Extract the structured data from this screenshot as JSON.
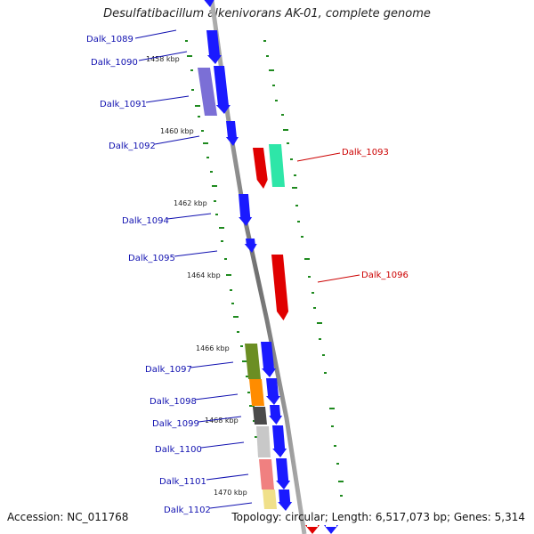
{
  "title": "Desulfatibacillum alkenivorans AK-01, complete genome",
  "footer": {
    "accession": "Accession: NC_011768",
    "summary": "Topology: circular; Length: 6,517,073 bp; Genes: 5,314"
  },
  "ticks": [
    "1458 kbp",
    "1460 kbp",
    "1462 kbp",
    "1464 kbp",
    "1466 kbp",
    "1468 kbp",
    "1470 kbp"
  ],
  "genes": [
    {
      "label": "Dalk_1089",
      "color": "#1a1aff",
      "strand": "forward"
    },
    {
      "label": "Dalk_1090",
      "color": "#1a1aff",
      "strand": "forward"
    },
    {
      "label": "Dalk_1091",
      "color": "#1a1aff",
      "strand": "forward"
    },
    {
      "label": "Dalk_1092",
      "color": "#1a1aff",
      "strand": "forward"
    },
    {
      "label": "Dalk_1093",
      "color": "#e00000",
      "strand": "reverse"
    },
    {
      "label": "Dalk_1094",
      "color": "#1a1aff",
      "strand": "forward"
    },
    {
      "label": "Dalk_1095",
      "color": "#1a1aff",
      "strand": "forward"
    },
    {
      "label": "Dalk_1096",
      "color": "#e00000",
      "strand": "reverse"
    },
    {
      "label": "Dalk_1097",
      "color": "#1a1aff",
      "strand": "forward"
    },
    {
      "label": "Dalk_1098",
      "color": "#1a1aff",
      "strand": "forward"
    },
    {
      "label": "Dalk_1099",
      "color": "#1a1aff",
      "strand": "forward"
    },
    {
      "label": "Dalk_1100",
      "color": "#1a1aff",
      "strand": "forward"
    },
    {
      "label": "Dalk_1101",
      "color": "#1a1aff",
      "strand": "forward"
    },
    {
      "label": "Dalk_1102",
      "color": "#1a1aff",
      "strand": "forward"
    }
  ],
  "colors": {
    "forward_gene": "#1a1aff",
    "reverse_gene": "#e00000",
    "backbone": "#888888",
    "gc_dots": "#1f8a1f",
    "cog_purple": "#7b6fd6",
    "cog_teal": "#2ee6a8",
    "cog_olive": "#6b8e23",
    "cog_orange": "#ff8c00",
    "cog_darkgray": "#4a4a4a",
    "cog_lightgray": "#c8c8c8",
    "cog_pink": "#f08080",
    "cog_yellow": "#f0e08a"
  }
}
